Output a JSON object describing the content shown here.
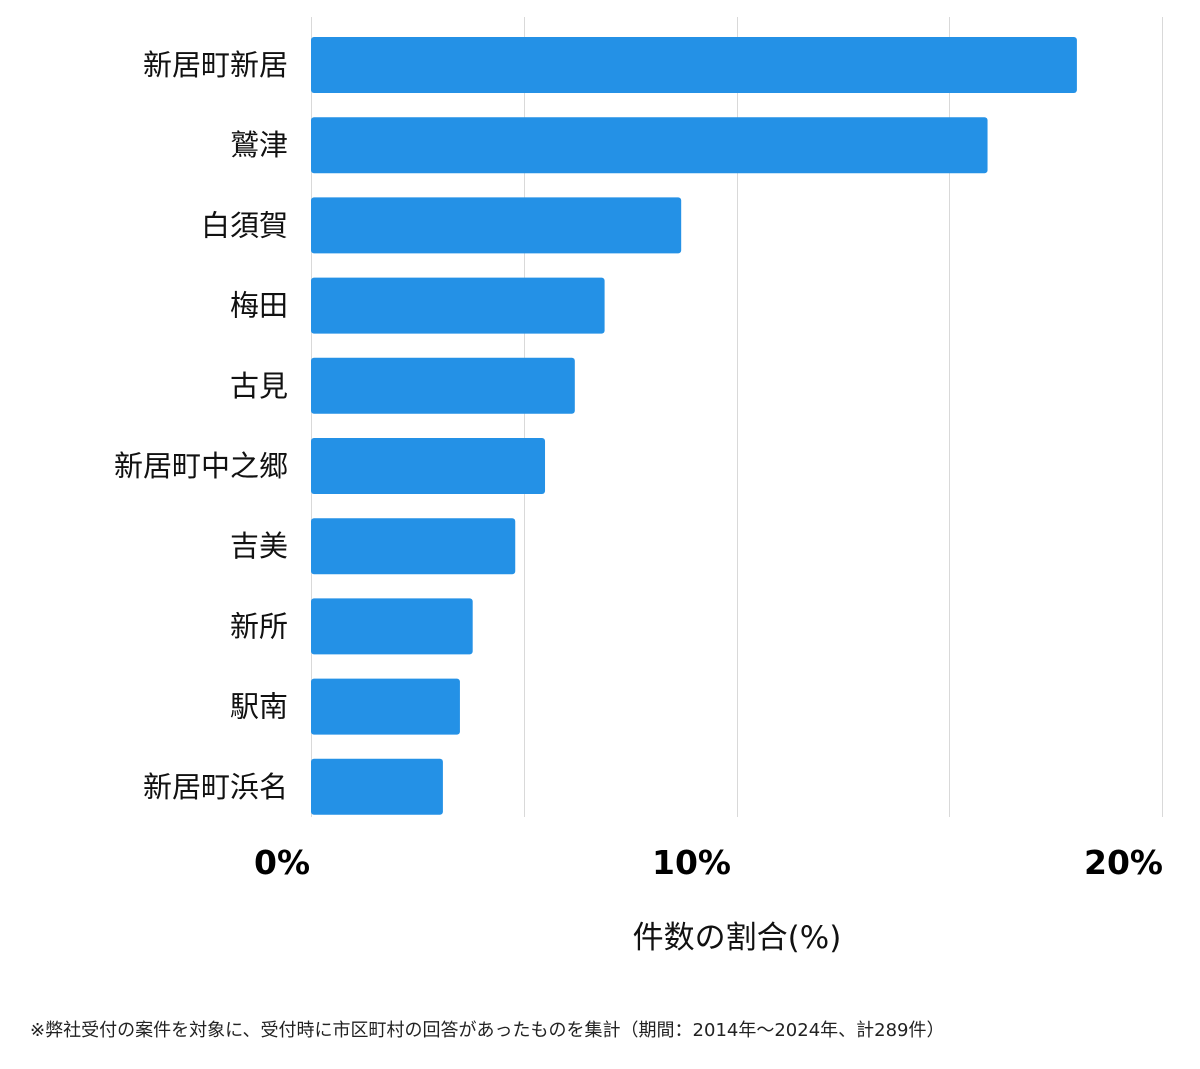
{
  "chart_data": {
    "type": "bar",
    "orientation": "horizontal",
    "categories": [
      "新居町新居",
      "鷲津",
      "白須賀",
      "梅田",
      "古見",
      "新居町中之郷",
      "吉美",
      "新所",
      "駅南",
      "新居町浜名"
    ],
    "values": [
      18.0,
      15.9,
      8.7,
      6.9,
      6.2,
      5.5,
      4.8,
      3.8,
      3.5,
      3.1
    ],
    "xlim": [
      0,
      20
    ],
    "xticks": [
      0,
      10,
      20
    ],
    "xtick_labels": [
      "0%",
      "10%",
      "20%"
    ],
    "xlabel": "件数の割合(%)",
    "ylabel": "",
    "title": "",
    "grid": true,
    "bar_color": "#2491e6",
    "grid_color": "#d9d9d9"
  },
  "footnote": "※弊社受付の案件を対象に、受付時に市区町村の回答があったものを集計（期間：2014年～2024年、計289件）"
}
